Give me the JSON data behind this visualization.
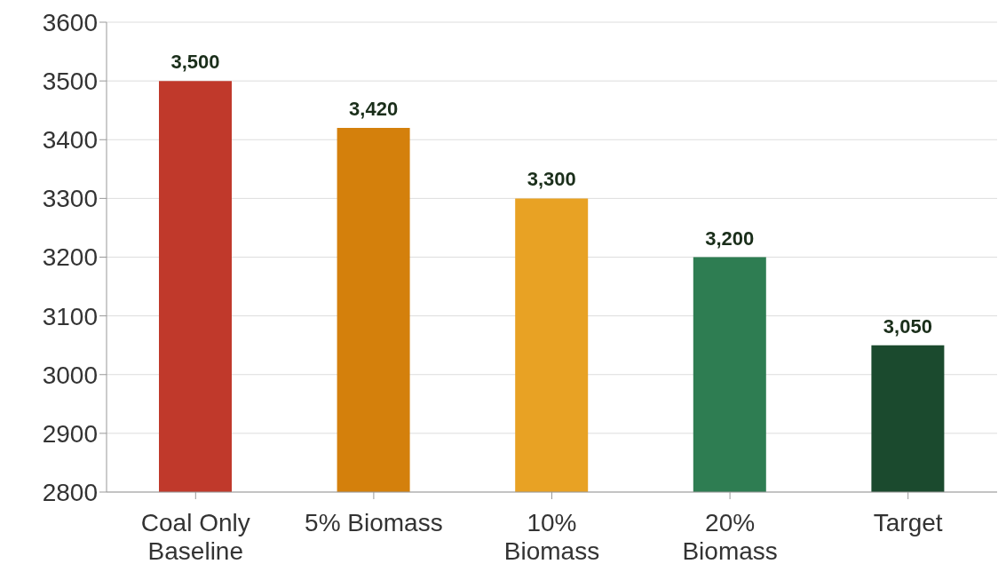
{
  "chart_data": {
    "type": "bar",
    "categories": [
      "Coal Only Baseline",
      "5% Biomass",
      "10% Biomass",
      "20% Biomass",
      "Target"
    ],
    "values": [
      3500,
      3420,
      3300,
      3200,
      3050
    ],
    "colors": [
      "#c0392b",
      "#d4800c",
      "#e8a224",
      "#2e7d52",
      "#1b4a2e"
    ],
    "ylim": [
      2800,
      3600
    ],
    "yticks": [
      2800,
      2900,
      3000,
      3100,
      3200,
      3300,
      3400,
      3500,
      3600
    ],
    "value_labels": [
      "3,500",
      "3,420",
      "3,300",
      "3,200",
      "3,050"
    ],
    "grid": "y"
  }
}
